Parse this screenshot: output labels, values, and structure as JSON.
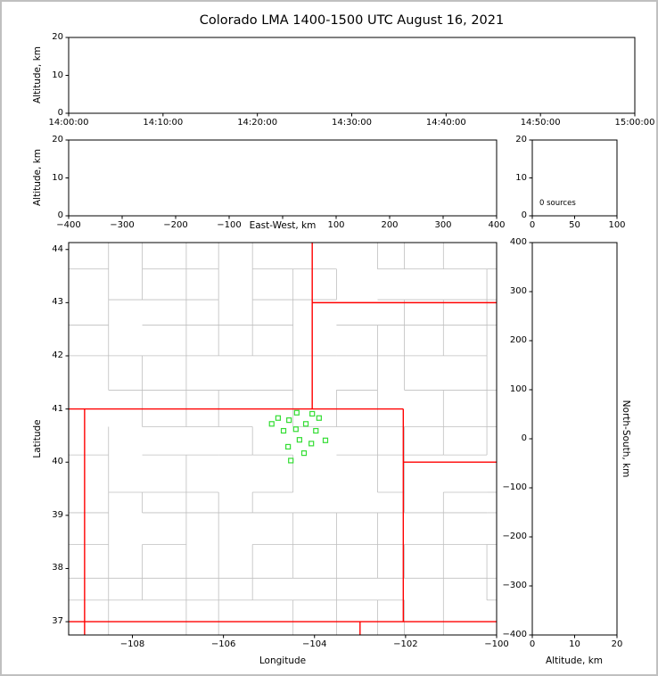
{
  "title": "Colorado LMA 1400-1500 UTC August 16, 2021",
  "colors": {
    "background": "#ffffff",
    "frame_border": "#c0c0c0",
    "axis": "#000000",
    "state_border": "#ff0000",
    "county_border": "#bfbfbf",
    "station_marker": "#33dd33"
  },
  "chart_data": [
    {
      "id": "time_height",
      "name": "altitude-vs-time",
      "type": "scatter",
      "xlabel": "",
      "ylabel": "Altitude, km",
      "xlim": [
        0,
        3600
      ],
      "xticks": [
        0,
        600,
        1200,
        1800,
        2400,
        3000,
        3600
      ],
      "xtick_labels": [
        "14:00:00",
        "14:10:00",
        "14:20:00",
        "14:30:00",
        "14:40:00",
        "14:50:00",
        "15:00:00"
      ],
      "ylim": [
        0,
        20
      ],
      "yticks": [
        0,
        10,
        20
      ],
      "grid": false,
      "points": []
    },
    {
      "id": "ew_height",
      "name": "altitude-vs-east-west",
      "type": "scatter",
      "xlabel": "East-West, km",
      "ylabel": "Altitude, km",
      "xlim": [
        -400,
        400
      ],
      "xticks": [
        -400,
        -300,
        -200,
        -100,
        0,
        100,
        200,
        300,
        400
      ],
      "xtick_labels": [
        "−400",
        "−300",
        "−200",
        "−100",
        "",
        "100",
        "200",
        "300",
        "400"
      ],
      "ylim": [
        0,
        20
      ],
      "yticks": [
        0,
        10,
        20
      ],
      "grid": false,
      "points": []
    },
    {
      "id": "alt_histogram",
      "name": "source-count-vs-altitude",
      "type": "histogram",
      "annotation": "0 sources",
      "xlabel": "",
      "ylabel": "",
      "xlim": [
        0,
        100
      ],
      "xticks": [
        0,
        50,
        100
      ],
      "ylim": [
        0,
        20
      ],
      "yticks": [
        0,
        10,
        20
      ],
      "grid": false,
      "values": []
    },
    {
      "id": "plan_view",
      "name": "plan-view-map",
      "type": "scatter",
      "xlabel": "Longitude",
      "ylabel": "Latitude",
      "xlim": [
        -109.4,
        -100.0
      ],
      "xticks": [
        -108,
        -106,
        -104,
        -102,
        -100
      ],
      "ylim": [
        36.75,
        44.13
      ],
      "yticks": [
        37,
        38,
        39,
        40,
        41,
        42,
        43,
        44
      ],
      "grid": false,
      "stations_lon_lat": [
        [
          -104.39,
          40.93
        ],
        [
          -104.05,
          40.91
        ],
        [
          -104.8,
          40.83
        ],
        [
          -104.56,
          40.79
        ],
        [
          -103.9,
          40.83
        ],
        [
          -104.94,
          40.72
        ],
        [
          -104.19,
          40.72
        ],
        [
          -104.41,
          40.62
        ],
        [
          -104.68,
          40.59
        ],
        [
          -103.97,
          40.59
        ],
        [
          -104.33,
          40.42
        ],
        [
          -103.76,
          40.41
        ],
        [
          -104.07,
          40.35
        ],
        [
          -104.58,
          40.29
        ],
        [
          -104.23,
          40.17
        ],
        [
          -104.52,
          40.03
        ]
      ],
      "state_borders": [
        [
          -109.45,
          41.0,
          -102.05,
          41.0
        ],
        [
          -109.05,
          36.7,
          -109.05,
          41.0
        ],
        [
          -102.05,
          37.0,
          -102.05,
          41.0
        ],
        [
          -109.45,
          37.0,
          -99.9,
          37.0
        ],
        [
          -103.0,
          36.7,
          -103.0,
          37.0
        ],
        [
          -104.05,
          41.0,
          -104.05,
          44.2
        ],
        [
          -104.05,
          43.0,
          -99.9,
          43.0
        ],
        [
          -102.05,
          40.0,
          -99.9,
          40.0
        ]
      ]
    },
    {
      "id": "height_ns",
      "name": "north-south-vs-altitude",
      "type": "scatter",
      "xlabel": "Altitude, km",
      "ylabel": "North-South, km",
      "xlim": [
        0,
        20
      ],
      "xticks": [
        0,
        10,
        20
      ],
      "ylim": [
        -400,
        400
      ],
      "yticks": [
        -400,
        -300,
        -200,
        -100,
        0,
        100,
        200,
        300,
        400
      ],
      "grid": false,
      "points": []
    }
  ]
}
